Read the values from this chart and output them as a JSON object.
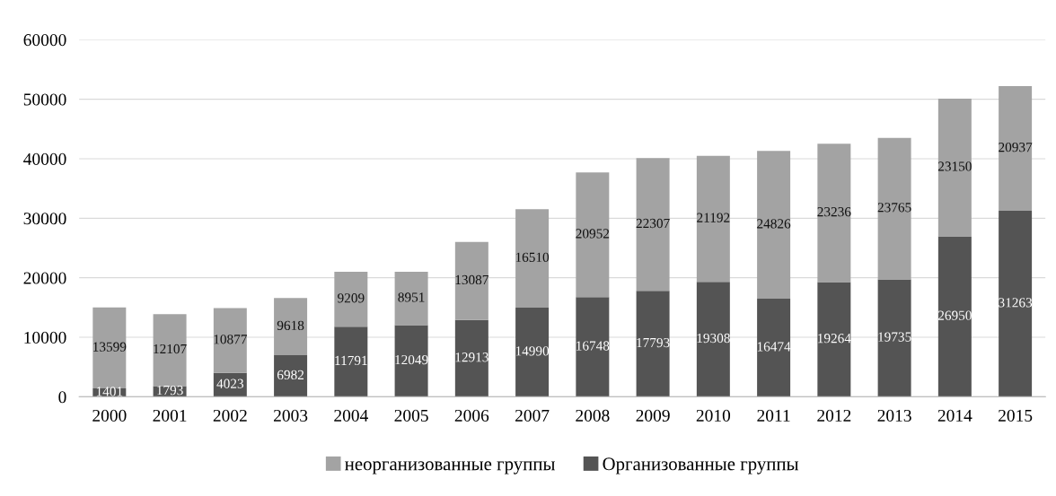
{
  "chart_data": {
    "type": "bar",
    "stacked": true,
    "categories": [
      "2000",
      "2001",
      "2002",
      "2003",
      "2004",
      "2005",
      "2006",
      "2007",
      "2008",
      "2009",
      "2010",
      "2011",
      "2012",
      "2013",
      "2014",
      "2015"
    ],
    "series": [
      {
        "name": "Организованные группы",
        "color": "#545454",
        "values": [
          1401,
          1793,
          4023,
          6982,
          11791,
          12049,
          12913,
          14990,
          16748,
          17793,
          19308,
          16474,
          19264,
          19735,
          26950,
          31263
        ]
      },
      {
        "name": "неорганизованные группы",
        "color": "#a3a3a3",
        "values": [
          13599,
          12107,
          10877,
          9618,
          9209,
          8951,
          13087,
          16510,
          20952,
          22307,
          21192,
          24826,
          23236,
          23765,
          23150,
          20937
        ]
      }
    ],
    "ylim": [
      0,
      60000
    ],
    "yticks": [
      0,
      10000,
      20000,
      30000,
      40000,
      50000,
      60000
    ],
    "grid": "y",
    "legend": "bottom",
    "data_labels": true
  }
}
